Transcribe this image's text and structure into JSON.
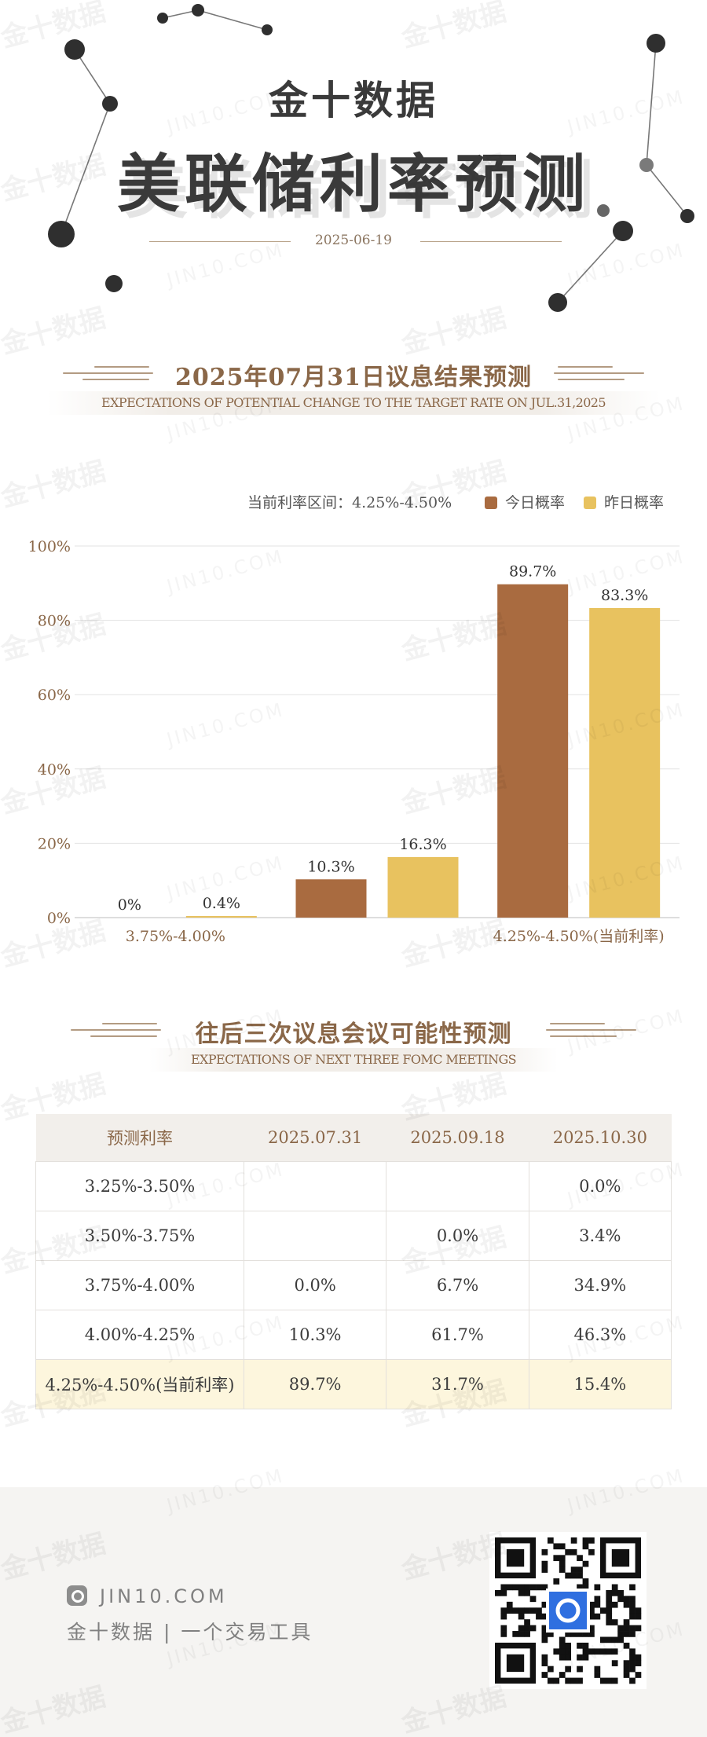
{
  "header": {
    "brand": "金十数据",
    "title": "美联储利率预测",
    "date": "2025-06-19"
  },
  "section1": {
    "title": "2025年07月31日议息结果预测",
    "subtitle": "EXPECTATIONS OF POTENTIAL CHANGE TO THE TARGET RATE ON JUL.31,2025",
    "current_rate_label": "当前利率区间：4.25%-4.50%",
    "legend": {
      "today": "今日概率",
      "yesterday": "昨日概率"
    }
  },
  "chart_data": {
    "type": "bar",
    "categories": [
      "3.75%-4.00%",
      "4.00%-4.25%",
      "4.25%-4.50%(当前利率)"
    ],
    "category_labels_shown": [
      "3.75%-4.00%",
      "",
      "4.25%-4.50%(当前利率)"
    ],
    "series": [
      {
        "name": "今日概率",
        "color": "#a96b40",
        "values": [
          0,
          10.3,
          89.7
        ],
        "labels": [
          "0%",
          "10.3%",
          "89.7%"
        ]
      },
      {
        "name": "昨日概率",
        "color": "#e8c25f",
        "values": [
          0.4,
          16.3,
          83.3
        ],
        "labels": [
          "0.4%",
          "16.3%",
          "83.3%"
        ]
      }
    ],
    "y_ticks": [
      "0%",
      "20%",
      "40%",
      "60%",
      "80%",
      "100%"
    ],
    "ylim": [
      0,
      100
    ],
    "grid": true,
    "legend_position": "top-right"
  },
  "section2": {
    "title": "往后三次议息会议可能性预测",
    "subtitle": "EXPECTATIONS OF NEXT THREE FOMC MEETINGS"
  },
  "table": {
    "headers": [
      "预测利率",
      "2025.07.31",
      "2025.09.18",
      "2025.10.30"
    ],
    "rows": [
      [
        "3.25%-3.50%",
        "",
        "",
        "0.0%"
      ],
      [
        "3.50%-3.75%",
        "",
        "0.0%",
        "3.4%"
      ],
      [
        "3.75%-4.00%",
        "0.0%",
        "6.7%",
        "34.9%"
      ],
      [
        "4.00%-4.25%",
        "10.3%",
        "61.7%",
        "46.3%"
      ],
      [
        "4.25%-4.50%(当前利率)",
        "89.7%",
        "31.7%",
        "15.4%"
      ]
    ]
  },
  "footer": {
    "site": "JIN10.COM",
    "tagline": "金十数据 | 一个交易工具"
  },
  "watermark": {
    "cn": "金十数据",
    "en": "JIN10.COM"
  },
  "colors": {
    "accent": "#8a6748",
    "today": "#a96b40",
    "yesterday": "#e8c25f",
    "highlight_row": "#fdf6dd"
  }
}
